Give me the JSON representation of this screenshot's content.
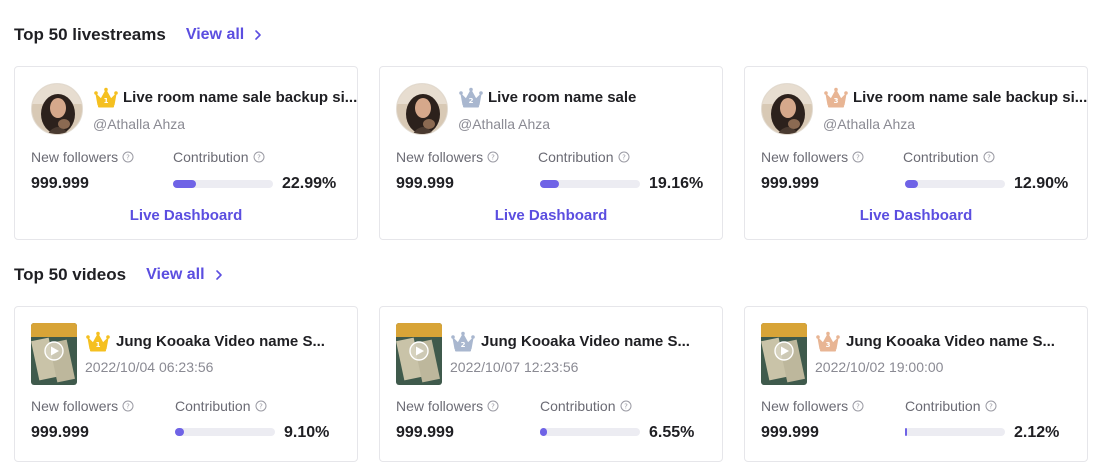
{
  "livestreams": {
    "title": "Top 50 livestreams",
    "view_all": "View all",
    "cards": [
      {
        "rank": 1,
        "crown_color": "#f5c020",
        "name": "Live room name sale backup si...",
        "handle": "@Athalla Ahza",
        "new_followers_label": "New followers",
        "contribution_label": "Contribution",
        "new_followers": "999.999",
        "contribution": "22.99%",
        "contribution_value": 22.99,
        "dashboard": "Live Dashboard"
      },
      {
        "rank": 2,
        "crown_color": "#a9b7cf",
        "name": "Live room name sale",
        "handle": "@Athalla Ahza",
        "new_followers_label": "New followers",
        "contribution_label": "Contribution",
        "new_followers": "999.999",
        "contribution": "19.16%",
        "contribution_value": 19.16,
        "dashboard": "Live Dashboard"
      },
      {
        "rank": 3,
        "crown_color": "#e8b594",
        "name": "Live room name sale backup si...",
        "handle": "@Athalla Ahza",
        "new_followers_label": "New followers",
        "contribution_label": "Contribution",
        "new_followers": "999.999",
        "contribution": "12.90%",
        "contribution_value": 12.9,
        "dashboard": "Live Dashboard"
      }
    ]
  },
  "videos": {
    "title": "Top 50 videos",
    "view_all": "View all",
    "cards": [
      {
        "rank": 1,
        "crown_color": "#f5c020",
        "name": "Jung Kooaka Video name S...",
        "date": "2022/10/04 06:23:56",
        "new_followers_label": "New followers",
        "contribution_label": "Contribution",
        "new_followers": "999.999",
        "contribution": "9.10%",
        "contribution_value": 9.1
      },
      {
        "rank": 2,
        "crown_color": "#a9b7cf",
        "name": "Jung Kooaka Video name S...",
        "date": "2022/10/07 12:23:56",
        "new_followers_label": "New followers",
        "contribution_label": "Contribution",
        "new_followers": "999.999",
        "contribution": "6.55%",
        "contribution_value": 6.55
      },
      {
        "rank": 3,
        "crown_color": "#e8b594",
        "name": "Jung Kooaka Video name S...",
        "date": "2022/10/02 19:00:00",
        "new_followers_label": "New followers",
        "contribution_label": "Contribution",
        "new_followers": "999.999",
        "contribution": "2.12%",
        "contribution_value": 2.12
      }
    ]
  },
  "colors": {
    "accent": "#5b4ee0",
    "bar_fill": "#6f63e6",
    "bar_track": "#ececf2"
  },
  "icons": {
    "crown": "crown-icon",
    "info": "info-icon",
    "chevron": "chevron-right-icon",
    "play": "play-icon"
  }
}
